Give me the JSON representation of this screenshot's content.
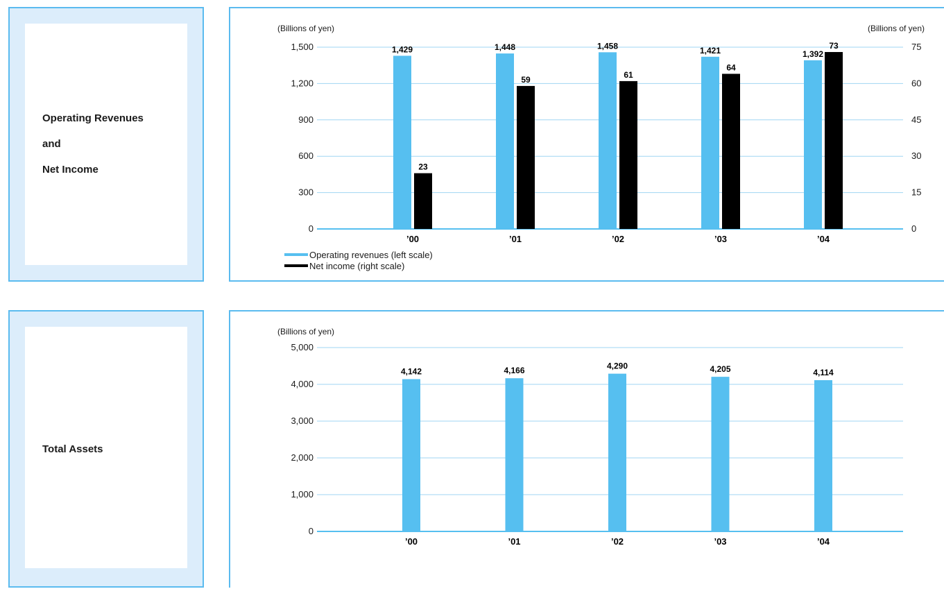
{
  "colors": {
    "revenue": "#56bff0",
    "income": "#000000",
    "grid": "#9fd6f3",
    "panel_border": "#5bbbef",
    "panel_bg": "#dcedfb"
  },
  "panel1": {
    "label_lines": [
      "Operating Revenues",
      "and",
      "Net Income"
    ]
  },
  "panel2": {
    "label_lines": [
      "Total Assets"
    ]
  },
  "chart_data": [
    {
      "type": "bar",
      "categories": [
        "’00",
        "’01",
        "’02",
        "’03",
        "’04"
      ],
      "left_unit": "(Billions of yen)",
      "right_unit": "(Billions of yen)",
      "left_ticks": [
        "0",
        "300",
        "600",
        "900",
        "1,200",
        "1,500"
      ],
      "right_ticks": [
        "0",
        "15",
        "30",
        "45",
        "60",
        "75"
      ],
      "ylim_left": [
        0,
        1500
      ],
      "ylim_right": [
        0,
        75
      ],
      "grid": true,
      "legend_position": "bottom-left",
      "series": [
        {
          "name": "Operating revenues (left scale)",
          "axis": "left",
          "values": [
            1429,
            1448,
            1458,
            1421,
            1392
          ],
          "labels": [
            "1,429",
            "1,448",
            "1,458",
            "1,421",
            "1,392"
          ]
        },
        {
          "name": "Net income (right scale)",
          "axis": "right",
          "values": [
            23,
            59,
            61,
            64,
            73
          ],
          "labels": [
            "23",
            "59",
            "61",
            "64",
            "73"
          ]
        }
      ]
    },
    {
      "type": "bar",
      "categories": [
        "’00",
        "’01",
        "’02",
        "’03",
        "’04"
      ],
      "left_unit": "(Billions of yen)",
      "left_ticks": [
        "0",
        "1,000",
        "2,000",
        "3,000",
        "4,000",
        "5,000"
      ],
      "ylim_left": [
        0,
        5000
      ],
      "grid": true,
      "series": [
        {
          "axis": "left",
          "values": [
            4142,
            4166,
            4290,
            4205,
            4114
          ],
          "labels": [
            "4,142",
            "4,166",
            "4,290",
            "4,205",
            "4,114"
          ]
        }
      ]
    }
  ]
}
